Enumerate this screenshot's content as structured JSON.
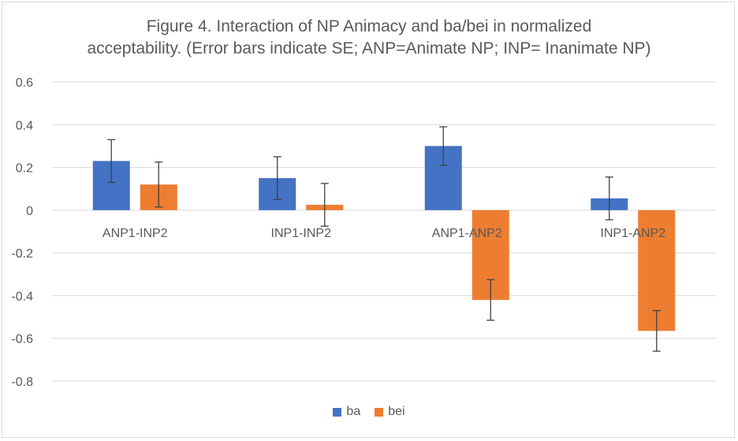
{
  "chart_data": {
    "type": "bar",
    "title_line1": "Figure 4.  Interaction of NP Animacy  and ba/bei in normalized",
    "title_line2": "acceptability. (Error bars indicate SE; ANP=Animate NP; INP= Inanimate NP)",
    "categories": [
      "ANP1-INP2",
      "INP1-INP2",
      "ANP1-ANP2",
      "INP1-ANP2"
    ],
    "series": [
      {
        "name": "ba",
        "color": "#4472C4",
        "values": [
          0.23,
          0.15,
          0.3,
          0.055
        ],
        "error": [
          0.1,
          0.1,
          0.09,
          0.1
        ]
      },
      {
        "name": "bei",
        "color": "#ED7D31",
        "values": [
          0.12,
          0.025,
          -0.42,
          -0.565
        ],
        "error": [
          0.105,
          0.1,
          0.095,
          0.095
        ]
      }
    ],
    "ylim": [
      -0.8,
      0.6
    ],
    "yticks": [
      0.6,
      0.4,
      0.2,
      0,
      -0.2,
      -0.4,
      -0.6,
      -0.8
    ],
    "ytick_labels": [
      "0.6",
      "0.4",
      "0.2",
      "0",
      "-0.2",
      "-0.4",
      "-0.6",
      "-0.8"
    ],
    "grid": true,
    "legend_position": "bottom",
    "error_bar_color": "#404040",
    "grid_color": "#d9d9d9",
    "text_color": "#595959"
  }
}
